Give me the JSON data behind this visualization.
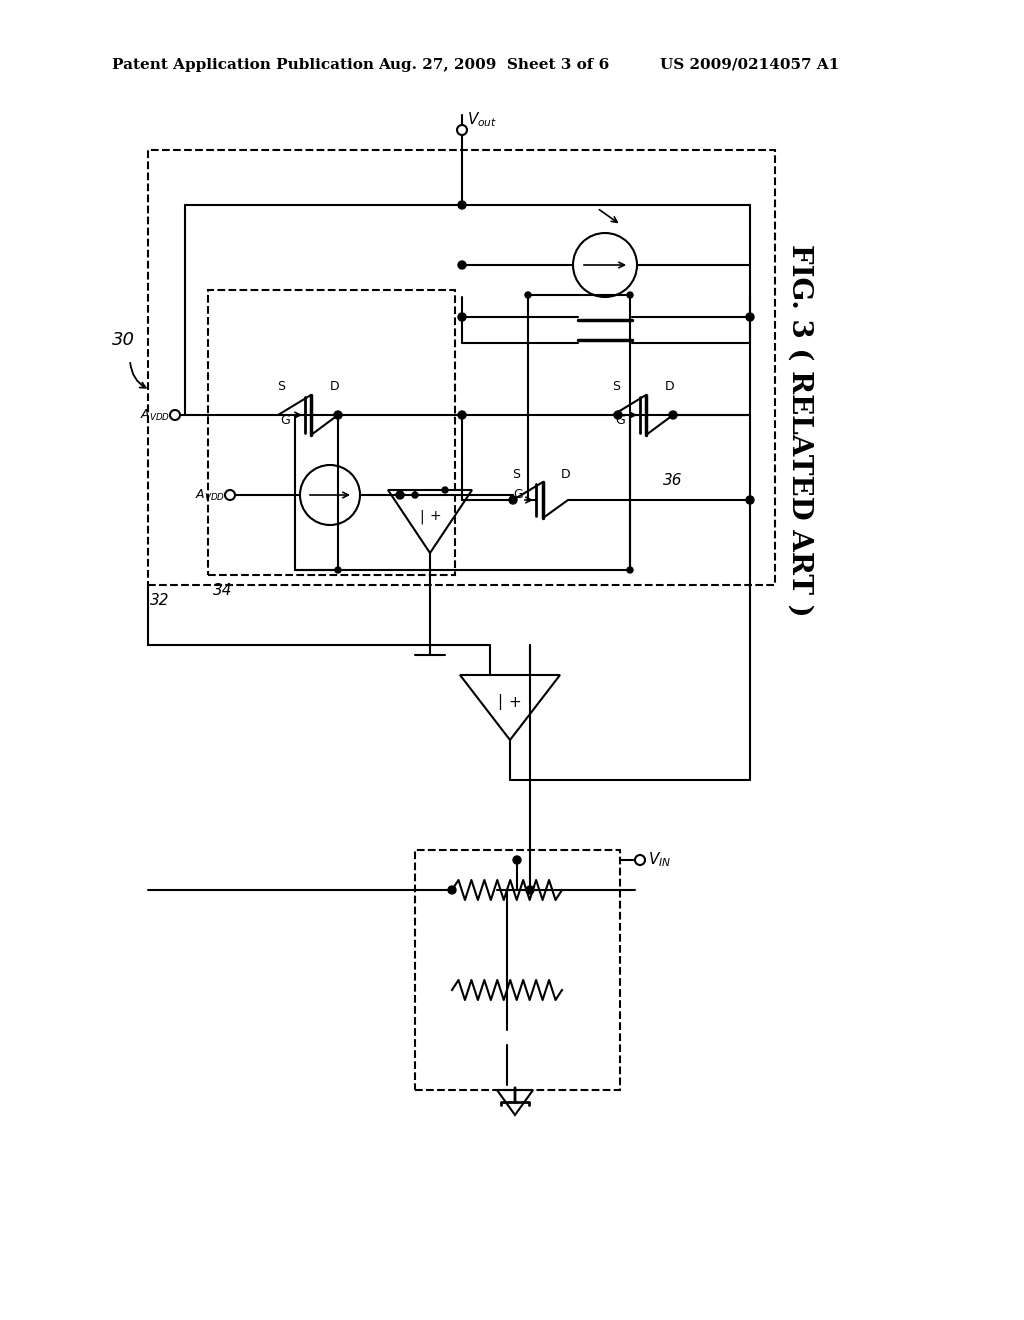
{
  "title": "FIG. 3 ( RELATED ART )",
  "header_left": "Patent Application Publication",
  "header_center": "Aug. 27, 2009  Sheet 3 of 6",
  "header_right": "US 2009/0214057 A1",
  "background_color": "#ffffff"
}
